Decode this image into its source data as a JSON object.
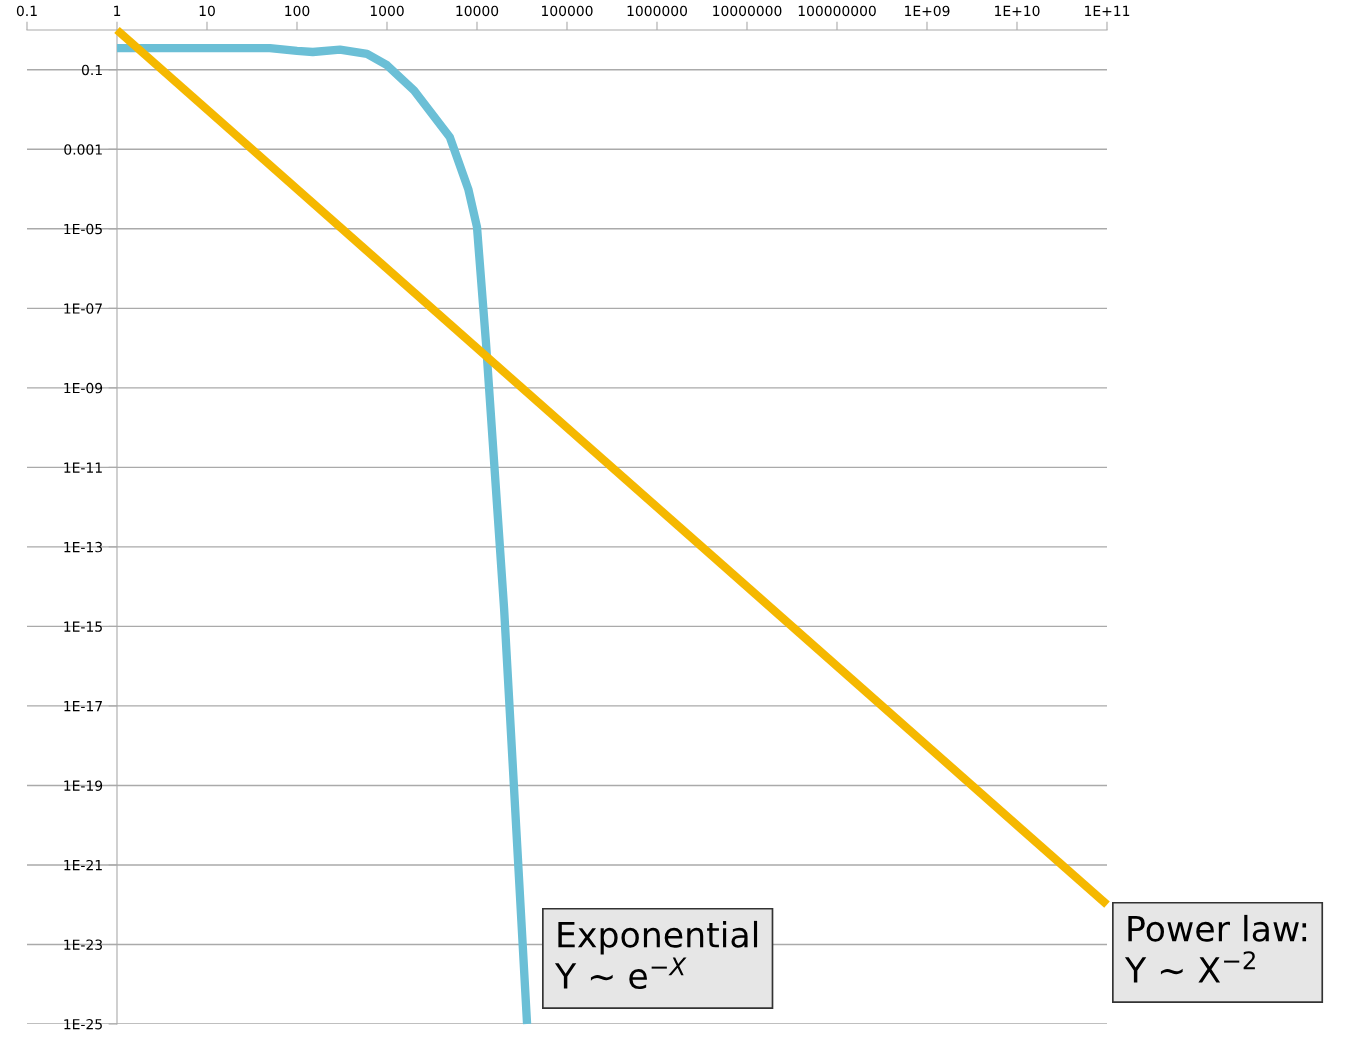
{
  "chart_data": {
    "type": "line",
    "log": "xy",
    "grid": "y",
    "legend": false,
    "marker": "none",
    "line_style": "solid",
    "xlim": [
      0.1,
      100000000000.0
    ],
    "xticks": [
      {
        "value": 0.1,
        "label": "0.1"
      },
      {
        "value": 1,
        "label": "1"
      },
      {
        "value": 10,
        "label": "10"
      },
      {
        "value": 100,
        "label": "100"
      },
      {
        "value": 1000,
        "label": "1000"
      },
      {
        "value": 10000,
        "label": "10000"
      },
      {
        "value": 100000,
        "label": "100000"
      },
      {
        "value": 1000000,
        "label": "1000000"
      },
      {
        "value": 10000000,
        "label": "10000000"
      },
      {
        "value": 100000000,
        "label": "100000000"
      },
      {
        "value": 1000000000.0,
        "label": "1E+09"
      },
      {
        "value": 10000000000.0,
        "label": "1E+10"
      },
      {
        "value": 100000000000.0,
        "label": "1E+11"
      }
    ],
    "ylim": [
      1e-25,
      1
    ],
    "yticks": [
      {
        "value": 0.1,
        "label": "0.1"
      },
      {
        "value": 0.001,
        "label": "0.001"
      },
      {
        "value": 1e-05,
        "label": "1E-05"
      },
      {
        "value": 1e-07,
        "label": "1E-07"
      },
      {
        "value": 1e-09,
        "label": "1E-09"
      },
      {
        "value": 1e-11,
        "label": "1E-11"
      },
      {
        "value": 1e-13,
        "label": "1E-13"
      },
      {
        "value": 1e-15,
        "label": "1E-15"
      },
      {
        "value": 1e-17,
        "label": "1E-17"
      },
      {
        "value": 1e-19,
        "label": "1E-19"
      },
      {
        "value": 1e-21,
        "label": "1E-21"
      },
      {
        "value": 1e-23,
        "label": "1E-23"
      },
      {
        "value": 1e-25,
        "label": "1E-25"
      }
    ],
    "series": [
      {
        "color": "#6bbfd6",
        "x": [
          1,
          10,
          50,
          100,
          150,
          300,
          600,
          1000,
          2000,
          5000,
          8000,
          10000,
          12600,
          20000,
          36000
        ],
        "values": [
          0.35,
          0.35,
          0.35,
          0.3,
          0.28,
          0.32,
          0.25,
          0.13,
          0.03,
          0.002,
          0.0001,
          1.1e-05,
          1.3e-08,
          2.8e-15,
          1e-25
        ]
      },
      {
        "color": "#f5b800",
        "x": [
          1,
          100000000000.0
        ],
        "values": [
          1,
          1e-22
        ]
      }
    ],
    "annotations": [
      "Exponential\nY ~ e$^{−X}$",
      "Power law:\nY ~ X$^{−2}$"
    ]
  }
}
